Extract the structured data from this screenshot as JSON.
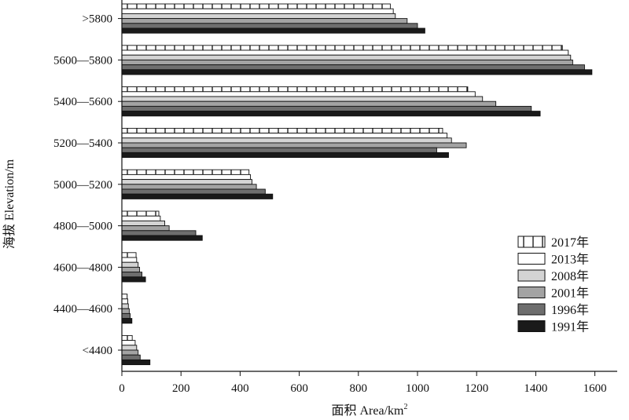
{
  "chart_data": {
    "type": "bar",
    "orientation": "horizontal",
    "xlabel": "面积 Area/km",
    "xlabel_sup": "2",
    "ylabel": "海拔 Elevation/m",
    "xlim": [
      0,
      1700
    ],
    "xticks": [
      0,
      200,
      400,
      600,
      800,
      1000,
      1200,
      1400,
      1600
    ],
    "categories": [
      ">5800",
      "5600—5800",
      "5400—5600",
      "5200—5400",
      "5000—5200",
      "4800—5000",
      "4600—4800",
      "4400—4600",
      "<4400"
    ],
    "legend_position": "lower-right",
    "series": [
      {
        "name": "2017年",
        "pattern": "vertical-lines",
        "color": "#ffffff",
        "values": [
          908,
          1490,
          1170,
          1085,
          430,
          125,
          48,
          18,
          35
        ]
      },
      {
        "name": "2013年",
        "pattern": "solid",
        "color": "#ffffff",
        "values": [
          918,
          1510,
          1195,
          1100,
          435,
          130,
          50,
          20,
          45
        ]
      },
      {
        "name": "2008年",
        "pattern": "solid",
        "color": "#d4d4d4",
        "values": [
          925,
          1518,
          1220,
          1115,
          440,
          145,
          55,
          22,
          50
        ]
      },
      {
        "name": "2001年",
        "pattern": "solid",
        "color": "#a3a3a3",
        "values": [
          965,
          1525,
          1265,
          1165,
          455,
          160,
          60,
          25,
          55
        ]
      },
      {
        "name": "1996年",
        "pattern": "solid",
        "color": "#6e6e6e",
        "values": [
          1000,
          1565,
          1385,
          1065,
          485,
          250,
          68,
          28,
          62
        ]
      },
      {
        "name": "1991年",
        "pattern": "solid",
        "color": "#1a1a1a",
        "values": [
          1025,
          1590,
          1415,
          1105,
          510,
          272,
          80,
          34,
          95
        ]
      }
    ]
  }
}
